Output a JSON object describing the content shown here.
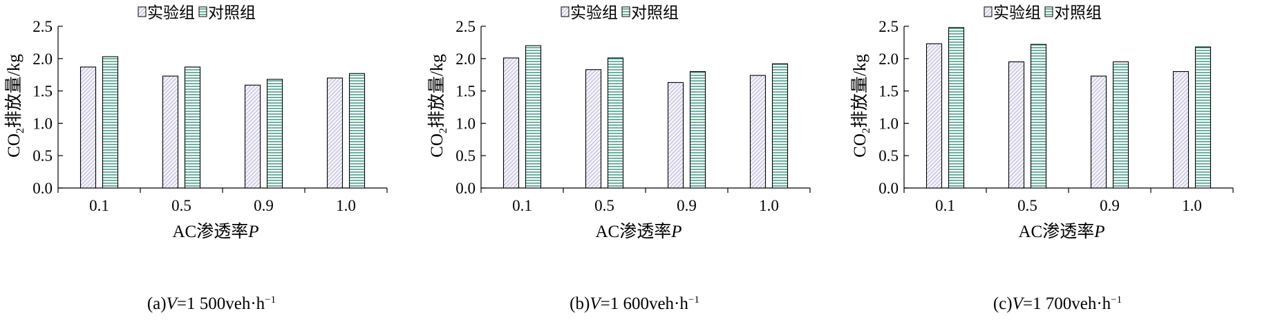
{
  "legend": {
    "experiment": "实验组",
    "control": "对照组"
  },
  "chart_data": [
    {
      "type": "bar",
      "categories": [
        "0.1",
        "0.5",
        "0.9",
        "1.0"
      ],
      "series": [
        {
          "name": "实验组",
          "values": [
            1.87,
            1.73,
            1.59,
            1.7
          ]
        },
        {
          "name": "对照组",
          "values": [
            2.03,
            1.87,
            1.68,
            1.77
          ]
        }
      ],
      "ylabel_main": "CO",
      "ylabel_sub": "2",
      "ylabel_rest": "排放量/kg",
      "xlabel_main": "AC渗透率",
      "xlabel_var": "P",
      "ylim": [
        0,
        2.5
      ],
      "yticks": [
        "0.0",
        "0.5",
        "1.0",
        "1.5",
        "2.0",
        "2.5"
      ],
      "legend_position": "top-center",
      "grid": false,
      "caption": {
        "prefix": "(a)",
        "var": "V",
        "mid": "=1 500veh·h",
        "sup": "−1"
      }
    },
    {
      "type": "bar",
      "categories": [
        "0.1",
        "0.5",
        "0.9",
        "1.0"
      ],
      "series": [
        {
          "name": "实验组",
          "values": [
            2.01,
            1.83,
            1.63,
            1.74
          ]
        },
        {
          "name": "对照组",
          "values": [
            2.2,
            2.01,
            1.8,
            1.92
          ]
        }
      ],
      "ylabel_main": "CO",
      "ylabel_sub": "2",
      "ylabel_rest": "排放量/kg",
      "xlabel_main": "AC渗透率",
      "xlabel_var": "P",
      "ylim": [
        0,
        2.5
      ],
      "yticks": [
        "0.0",
        "0.5",
        "1.0",
        "1.5",
        "2.0",
        "2.5"
      ],
      "legend_position": "top-center",
      "grid": false,
      "caption": {
        "prefix": "(b)",
        "var": "V",
        "mid": "=1 600veh·h",
        "sup": "−1"
      }
    },
    {
      "type": "bar",
      "categories": [
        "0.1",
        "0.5",
        "0.9",
        "1.0"
      ],
      "series": [
        {
          "name": "实验组",
          "values": [
            2.23,
            1.95,
            1.73,
            1.8
          ]
        },
        {
          "name": "对照组",
          "values": [
            2.48,
            2.22,
            1.95,
            2.18
          ]
        }
      ],
      "ylabel_main": "CO",
      "ylabel_sub": "2",
      "ylabel_rest": "排放量/kg",
      "xlabel_main": "AC渗透率",
      "xlabel_var": "P",
      "ylim": [
        0,
        2.5
      ],
      "yticks": [
        "0.0",
        "0.5",
        "1.0",
        "1.5",
        "2.0",
        "2.5"
      ],
      "legend_position": "top-center",
      "grid": false,
      "caption": {
        "prefix": "(c)",
        "var": "V",
        "mid": "=1 700veh·h",
        "sup": "−1"
      }
    }
  ]
}
